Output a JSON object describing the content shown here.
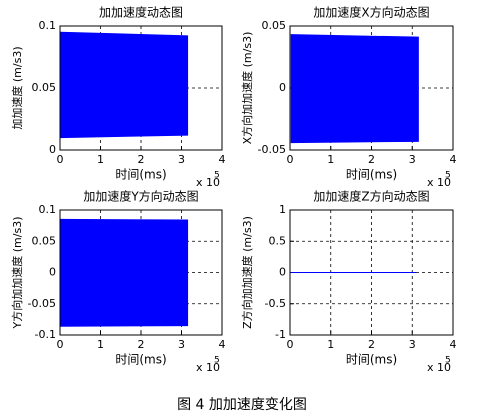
{
  "chart_data": [
    {
      "type": "area",
      "title": "加加速度动态图",
      "xlabel": "时间(ms)",
      "ylabel": "加加速度 (m/s3)",
      "x_scale_label": "x 10",
      "x_scale_exponent": "5",
      "color": "#0000ff",
      "grid": true,
      "x": [
        0,
        315000
      ],
      "upper": [
        0.095,
        0.092
      ],
      "lower": [
        0.01,
        0.012
      ],
      "xlim": [
        0,
        400000
      ],
      "xticks": [
        {
          "value": 0,
          "label": "0"
        },
        {
          "value": 100000,
          "label": "1"
        },
        {
          "value": 200000,
          "label": "2"
        },
        {
          "value": 300000,
          "label": "3"
        },
        {
          "value": 400000,
          "label": "4"
        }
      ],
      "ylim": [
        0,
        0.1
      ],
      "yticks": [
        0,
        0.05,
        0.1
      ]
    },
    {
      "type": "area",
      "title": "加加速度X方向动态图",
      "xlabel": "时间(ms)",
      "ylabel": "X方向加加速度 (m/s3)",
      "x_scale_label": "x 10",
      "x_scale_exponent": "5",
      "color": "#0000ff",
      "grid": true,
      "x": [
        3000,
        315000
      ],
      "upper": [
        0.043,
        0.041
      ],
      "lower": [
        -0.044,
        -0.043
      ],
      "xlim": [
        0,
        400000
      ],
      "xticks": [
        {
          "value": 0,
          "label": "0"
        },
        {
          "value": 100000,
          "label": "1"
        },
        {
          "value": 200000,
          "label": "2"
        },
        {
          "value": 300000,
          "label": "3"
        },
        {
          "value": 400000,
          "label": "4"
        }
      ],
      "ylim": [
        -0.05,
        0.05
      ],
      "yticks": [
        -0.05,
        0,
        0.05
      ]
    },
    {
      "type": "area",
      "title": "加加速度Y方向动态图",
      "xlabel": "时间(ms)",
      "ylabel": "Y方向加加速度 (m/s3)",
      "x_scale_label": "x 10",
      "x_scale_exponent": "5",
      "color": "#0000ff",
      "grid": true,
      "x": [
        0,
        315000
      ],
      "upper": [
        0.085,
        0.084
      ],
      "lower": [
        -0.086,
        -0.085
      ],
      "xlim": [
        0,
        400000
      ],
      "xticks": [
        {
          "value": 0,
          "label": "0"
        },
        {
          "value": 100000,
          "label": "1"
        },
        {
          "value": 200000,
          "label": "2"
        },
        {
          "value": 300000,
          "label": "3"
        },
        {
          "value": 400000,
          "label": "4"
        }
      ],
      "ylim": [
        -0.1,
        0.1
      ],
      "yticks": [
        -0.1,
        -0.05,
        0,
        0.05,
        0.1
      ]
    },
    {
      "type": "line",
      "title": "加加速度Z方向动态图",
      "xlabel": "时间(ms)",
      "ylabel": "Z方向加加速度 (m/s3)",
      "x_scale_label": "x 10",
      "x_scale_exponent": "5",
      "color": "#0000ff",
      "grid": true,
      "x": [
        0,
        310000
      ],
      "values": [
        0,
        0
      ],
      "xlim": [
        0,
        400000
      ],
      "xticks": [
        {
          "value": 0,
          "label": "0"
        },
        {
          "value": 100000,
          "label": "1"
        },
        {
          "value": 200000,
          "label": "2"
        },
        {
          "value": 300000,
          "label": "3"
        },
        {
          "value": 400000,
          "label": "4"
        }
      ],
      "ylim": [
        -1,
        1
      ],
      "yticks": [
        -1,
        -0.5,
        0,
        0.5,
        1
      ]
    }
  ],
  "caption": "图 4 加加速度变化图"
}
